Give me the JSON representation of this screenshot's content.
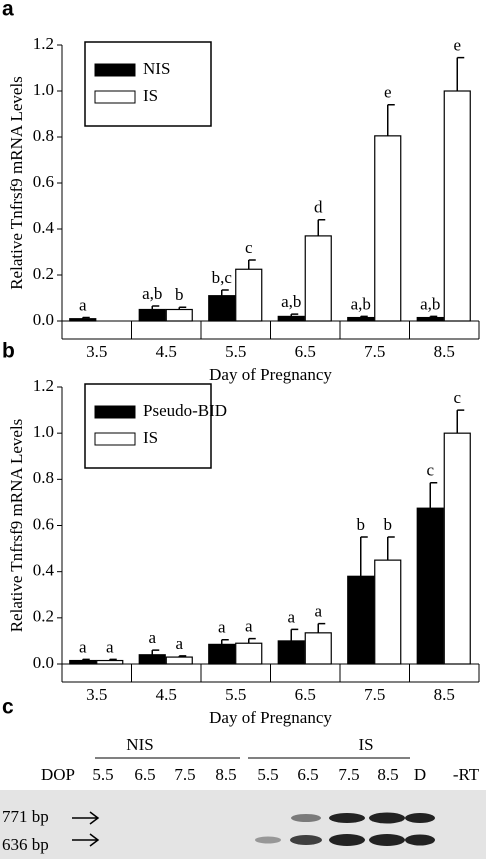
{
  "chart_data": [
    {
      "type": "bar",
      "panel_label": "a",
      "ylabel": "Relative Tnfrsf9 mRNA Levels",
      "xlabel": "Day of Pregnancy",
      "categories": [
        "3.5",
        "4.5",
        "5.5",
        "6.5",
        "7.5",
        "8.5"
      ],
      "series": [
        {
          "name": "NIS",
          "color": "#000000",
          "values": [
            0.01,
            0.05,
            0.11,
            0.02,
            0.015,
            0.015
          ],
          "errors": [
            0.005,
            0.015,
            0.025,
            0.01,
            0.005,
            0.005
          ],
          "labels": [
            "a",
            "a,b",
            "b,c",
            "a,b",
            "a,b",
            "a,b"
          ]
        },
        {
          "name": "IS",
          "color": "#ffffff",
          "values": [
            null,
            0.05,
            0.225,
            0.37,
            0.805,
            1.0
          ],
          "errors": [
            null,
            0.01,
            0.04,
            0.07,
            0.135,
            0.145
          ],
          "labels": [
            null,
            "b",
            "c",
            "d",
            "e",
            "e"
          ]
        }
      ],
      "ylim": [
        0,
        1.2
      ],
      "yticks": [
        {
          "value": 0,
          "label": "0.0"
        },
        {
          "value": 0.2,
          "label": "0.2"
        },
        {
          "value": 0.4,
          "label": "0.4"
        },
        {
          "value": 0.6,
          "label": "0.6"
        },
        {
          "value": 0.8,
          "label": "0.8"
        },
        {
          "value": 1,
          "label": "1.0"
        },
        {
          "value": 1.2,
          "label": "1.2"
        }
      ],
      "legend": "upper left"
    },
    {
      "type": "bar",
      "panel_label": "b",
      "ylabel": "Relative Tnfrsf9 mRNA Levels",
      "xlabel": "Day of Pregnancy",
      "categories": [
        "3.5",
        "4.5",
        "5.5",
        "6.5",
        "7.5",
        "8.5"
      ],
      "series": [
        {
          "name": "Pseudo-BID",
          "color": "#000000",
          "values": [
            0.015,
            0.04,
            0.085,
            0.1,
            0.38,
            0.675
          ],
          "errors": [
            0.005,
            0.02,
            0.02,
            0.05,
            0.17,
            0.11
          ],
          "labels": [
            "a",
            "a",
            "a",
            "a",
            "b",
            "c"
          ]
        },
        {
          "name": "IS",
          "color": "#ffffff",
          "values": [
            0.015,
            0.03,
            0.09,
            0.135,
            0.45,
            1.0
          ],
          "errors": [
            0.005,
            0.005,
            0.02,
            0.04,
            0.1,
            0.1
          ],
          "labels": [
            "a",
            "a",
            "a",
            "a",
            "b",
            "c"
          ]
        }
      ],
      "ylim": [
        0,
        1.2
      ],
      "yticks": [
        {
          "value": 0,
          "label": "0.0"
        },
        {
          "value": 0.2,
          "label": "0.2"
        },
        {
          "value": 0.4,
          "label": "0.4"
        },
        {
          "value": 0.6,
          "label": "0.6"
        },
        {
          "value": 0.8,
          "label": "0.8"
        },
        {
          "value": 1,
          "label": "1.0"
        },
        {
          "value": 1.2,
          "label": "1.2"
        }
      ],
      "legend": "upper left"
    }
  ],
  "gel": {
    "panel_label": "c",
    "groups": [
      "NIS",
      "IS"
    ],
    "row_label": "DOP",
    "lanes": [
      "5.5",
      "6.5",
      "7.5",
      "8.5",
      "5.5",
      "6.5",
      "7.5",
      "8.5",
      "D",
      "-RT"
    ],
    "markers": [
      "771 bp",
      "636 bp"
    ]
  }
}
